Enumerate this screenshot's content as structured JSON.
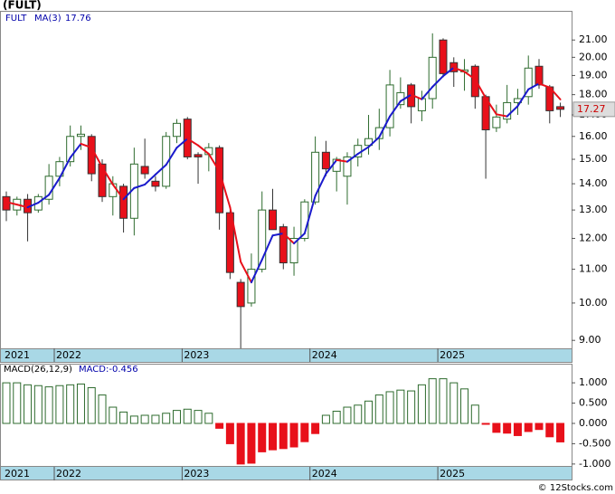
{
  "chart_data": [
    {
      "type": "candlestick",
      "title": "(FULT)",
      "log_scale": true,
      "categories": [
        "2021",
        null,
        null,
        null,
        null,
        "2022",
        null,
        null,
        null,
        null,
        null,
        null,
        null,
        null,
        null,
        null,
        null,
        "2023",
        null,
        null,
        null,
        null,
        null,
        null,
        null,
        null,
        null,
        null,
        null,
        "2024",
        null,
        null,
        null,
        null,
        null,
        null,
        null,
        null,
        null,
        null,
        null,
        "2025",
        null,
        null,
        null,
        null,
        null,
        null,
        null,
        null,
        null,
        null,
        null
      ],
      "open": [
        13.5,
        13.0,
        13.4,
        13.0,
        13.4,
        14.3,
        14.9,
        16.0,
        16.0,
        14.8,
        13.5,
        13.9,
        12.7,
        14.7,
        14.1,
        13.9,
        16.0,
        16.8,
        15.2,
        15.2,
        15.5,
        12.9,
        10.6,
        10.0,
        11.0,
        13.0,
        12.4,
        11.2,
        12.0,
        13.3,
        15.3,
        14.5,
        14.3,
        15.1,
        15.6,
        15.9,
        16.4,
        17.5,
        18.5,
        17.2,
        17.8,
        21.0,
        19.7,
        19.2,
        19.5,
        17.9,
        16.4,
        16.8,
        17.6,
        17.9,
        19.5,
        18.4,
        17.4
      ],
      "high": [
        13.7,
        13.5,
        13.6,
        13.6,
        14.8,
        15.1,
        16.5,
        16.5,
        16.1,
        15.0,
        14.3,
        14.0,
        15.5,
        15.9,
        14.3,
        16.2,
        16.8,
        16.9,
        15.3,
        15.7,
        15.6,
        13.0,
        10.7,
        11.5,
        13.7,
        13.8,
        12.5,
        12.4,
        13.4,
        16.0,
        15.8,
        15.1,
        15.3,
        15.9,
        17.0,
        17.3,
        19.3,
        18.9,
        18.6,
        18.2,
        21.4,
        21.1,
        20.0,
        19.9,
        19.6,
        18.0,
        17.5,
        18.5,
        18.3,
        20.1,
        19.9,
        18.5,
        17.6
      ],
      "low": [
        12.6,
        12.8,
        11.9,
        12.9,
        13.2,
        13.9,
        14.7,
        15.4,
        14.1,
        13.3,
        12.8,
        12.2,
        12.1,
        14.2,
        13.7,
        13.8,
        15.7,
        15.0,
        14.0,
        14.5,
        12.3,
        10.7,
        8.8,
        9.9,
        10.9,
        12.3,
        11.0,
        10.8,
        11.9,
        13.2,
        14.3,
        13.7,
        13.2,
        14.7,
        15.2,
        15.4,
        16.0,
        17.3,
        16.6,
        16.7,
        17.3,
        18.9,
        18.4,
        18.2,
        17.3,
        14.2,
        16.2,
        16.6,
        17.0,
        17.5,
        18.3,
        16.6,
        16.9
      ],
      "close": [
        13.0,
        13.4,
        12.9,
        13.5,
        14.3,
        14.9,
        16.0,
        16.1,
        14.4,
        13.5,
        14.0,
        12.7,
        14.8,
        14.4,
        13.9,
        16.0,
        16.6,
        15.1,
        15.1,
        15.5,
        12.9,
        10.9,
        9.9,
        11.0,
        13.0,
        12.3,
        11.2,
        12.0,
        13.3,
        15.3,
        14.6,
        15.0,
        15.1,
        15.6,
        15.9,
        16.4,
        18.5,
        18.1,
        17.4,
        17.8,
        20.0,
        19.1,
        19.2,
        19.3,
        17.9,
        16.3,
        16.9,
        17.6,
        17.8,
        19.4,
        18.5,
        17.2,
        17.27
      ],
      "up_color": "#2e6b2e",
      "down_color": "#e8101a",
      "ma": {
        "symbol": "FULT",
        "name": "MA(3)",
        "up_color": "#1a1acc",
        "down_color": "#e8101a",
        "values": [
          13.3,
          13.2,
          13.1,
          13.27,
          13.57,
          14.23,
          15.07,
          15.67,
          15.5,
          14.67,
          13.97,
          13.4,
          13.83,
          13.97,
          14.37,
          14.77,
          15.5,
          15.9,
          15.6,
          15.23,
          14.5,
          13.1,
          11.23,
          10.6,
          11.3,
          12.1,
          12.17,
          11.83,
          12.17,
          13.53,
          14.4,
          14.97,
          14.9,
          15.23,
          15.53,
          15.97,
          16.93,
          17.67,
          18.0,
          17.77,
          18.4,
          18.97,
          19.43,
          19.2,
          18.8,
          17.83,
          17.03,
          16.93,
          17.43,
          18.27,
          18.57,
          18.37,
          17.76
        ]
      },
      "ylim": [
        8.8,
        22.8
      ],
      "yticks": [
        {
          "value": 9,
          "label": "9.00"
        },
        {
          "value": 10,
          "label": "10.00"
        },
        {
          "value": 11,
          "label": "11.00"
        },
        {
          "value": 12,
          "label": "12.00"
        },
        {
          "value": 13,
          "label": "13.00"
        },
        {
          "value": 14,
          "label": "14.00"
        },
        {
          "value": 15,
          "label": "15.00"
        },
        {
          "value": 16,
          "label": "16.00"
        },
        {
          "value": 17,
          "label": "17.00"
        },
        {
          "value": 18,
          "label": "18.00"
        },
        {
          "value": 19,
          "label": "19.00"
        },
        {
          "value": 20,
          "label": "20.00"
        },
        {
          "value": 21,
          "label": "21.00"
        }
      ]
    },
    {
      "type": "bar",
      "title": "MACD(26,12,9)",
      "value_label": "MACD:-0.456",
      "categories": [
        "2021",
        null,
        null,
        null,
        null,
        "2022",
        null,
        null,
        null,
        null,
        null,
        null,
        null,
        null,
        null,
        null,
        null,
        "2023",
        null,
        null,
        null,
        null,
        null,
        null,
        null,
        null,
        null,
        null,
        null,
        "2024",
        null,
        null,
        null,
        null,
        null,
        null,
        null,
        null,
        null,
        null,
        null,
        "2025",
        null,
        null,
        null,
        null,
        null,
        null,
        null,
        null,
        null,
        null,
        null
      ],
      "values": [
        1.0,
        1.0,
        0.95,
        0.93,
        0.9,
        0.93,
        0.95,
        0.97,
        0.88,
        0.7,
        0.4,
        0.28,
        0.18,
        0.2,
        0.2,
        0.25,
        0.32,
        0.35,
        0.32,
        0.25,
        -0.12,
        -0.5,
        -1.0,
        -0.98,
        -0.7,
        -0.65,
        -0.62,
        -0.58,
        -0.45,
        -0.25,
        0.2,
        0.3,
        0.4,
        0.45,
        0.55,
        0.7,
        0.78,
        0.82,
        0.8,
        0.95,
        1.1,
        1.1,
        1.0,
        0.85,
        0.45,
        -0.02,
        -0.22,
        -0.24,
        -0.3,
        -0.2,
        -0.15,
        -0.33,
        -0.456
      ],
      "up_color": "#2e6b2e",
      "down_color": "#e8101a",
      "ylim": [
        -1.07,
        1.47
      ],
      "yticks": [
        {
          "value": 1,
          "label": "1.000"
        },
        {
          "value": 0.5,
          "label": "0.500"
        },
        {
          "value": 0,
          "label": "0.000"
        },
        {
          "value": -0.5,
          "label": "-0.500"
        },
        {
          "value": -1,
          "label": "-1.000"
        }
      ]
    }
  ],
  "watermark": "© 12Stocks.com"
}
